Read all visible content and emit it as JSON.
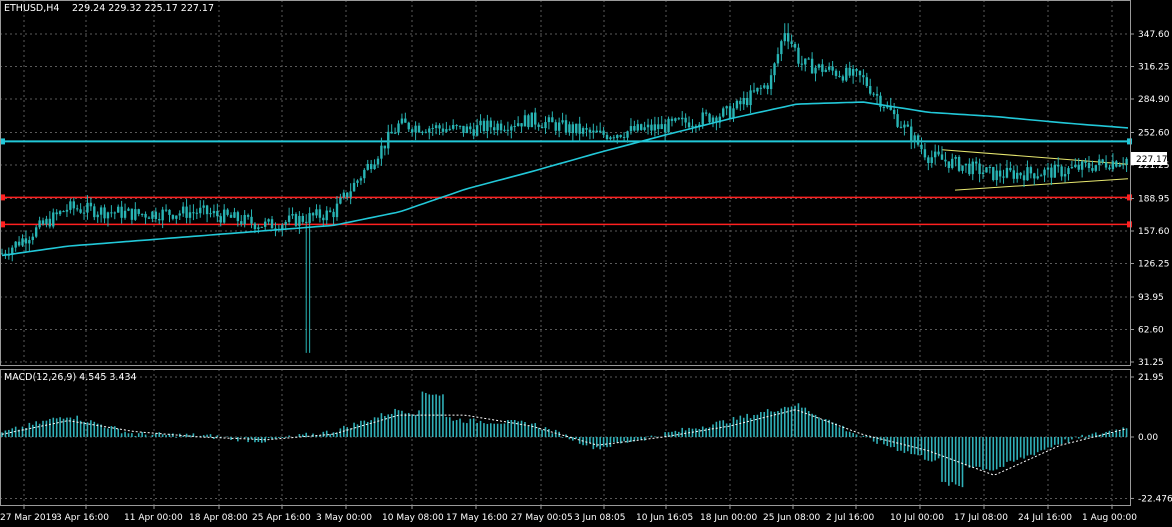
{
  "header": {
    "symbol": "ETHUSD,H4",
    "ohlc": "229.24 229.32 225.17 227.17"
  },
  "price_panel": {
    "price_ticks": [
      "347.60",
      "316.25",
      "284.90",
      "252.60",
      "221.25",
      "188.95",
      "157.60",
      "126.25",
      "93.95",
      "62.60",
      "31.25"
    ],
    "current_price_label": "227.17",
    "current_price": 227.17,
    "hlines": [
      {
        "name": "cyan-level",
        "price": 244,
        "color": "#22c8d8"
      },
      {
        "name": "red-level-upper",
        "price": 190,
        "color": "#ff2020"
      },
      {
        "name": "red-level-lower",
        "price": 164,
        "color": "#ff2020"
      }
    ]
  },
  "macd_panel": {
    "title": "MACD(12,26,9) 4.545 3.434",
    "ticks": [
      "21.95",
      "0.00",
      "-22.476"
    ]
  },
  "time_axis": {
    "labels": [
      "27 Mar 2019",
      "3 Apr 16:00",
      "11 Apr 00:00",
      "18 Apr 08:00",
      "25 Apr 16:00",
      "3 May 00:00",
      "10 May 08:00",
      "17 May 16:00",
      "27 May 00:05",
      "3 Jun 08:05",
      "10 Jun 16:05",
      "18 Jun 00:00",
      "25 Jun 08:00",
      "2 Jul 16:00",
      "10 Jul 00:00",
      "17 Jul 08:00",
      "24 Jul 16:00",
      "1 Aug 00:00"
    ]
  },
  "chart_data": [
    {
      "type": "line",
      "title": "ETHUSD,H4",
      "ylim": [
        31.25,
        364
      ],
      "x": [
        "27 Mar 2019",
        "3 Apr 16:00",
        "11 Apr 00:00",
        "18 Apr 08:00",
        "25 Apr 16:00",
        "3 May 00:00",
        "10 May 08:00",
        "17 May 16:00",
        "27 May 00:05",
        "3 Jun 08:05",
        "10 Jun 16:05",
        "18 Jun 00:00",
        "25 Jun 08:00",
        "2 Jul 16:00",
        "10 Jul 00:00",
        "17 Jul 08:00",
        "24 Jul 16:00",
        "1 Aug 00:00"
      ],
      "series": [
        {
          "values": [
            136,
            180,
            174,
            176,
            163,
            175,
            260,
            255,
            265,
            250,
            258,
            272,
            320,
            305,
            230,
            212,
            215,
            227
          ],
          "color": "#22b8b8"
        },
        {
          "values": [
            134,
            143,
            148,
            153,
            158,
            163,
            176,
            198,
            215,
            233,
            250,
            266,
            280,
            282,
            272,
            268,
            262,
            257
          ],
          "color": "#22c8d8"
        }
      ]
    },
    {
      "type": "bar",
      "title": "MACD(12,26,9) 4.545 3.434",
      "ylim": [
        -26,
        25
      ],
      "x": [
        "27 Mar 2019",
        "3 Apr 16:00",
        "11 Apr 00:00",
        "18 Apr 08:00",
        "25 Apr 16:00",
        "3 May 00:00",
        "10 May 08:00",
        "17 May 16:00",
        "27 May 00:05",
        "3 Jun 08:05",
        "10 Jun 16:05",
        "18 Jun 00:00",
        "25 Jun 08:00",
        "2 Jul 16:00",
        "10 Jul 00:00",
        "17 Jul 08:00",
        "24 Jul 16:00",
        "1 Aug 00:00"
      ],
      "series": [
        {
          "values": [
            1.5,
            8,
            1,
            0.5,
            -1.5,
            2,
            10,
            6,
            5,
            -4,
            1,
            6,
            12,
            0,
            -8,
            -12,
            -2,
            3.5
          ],
          "color": "#30b0b8"
        },
        {
          "values": [
            1,
            6,
            2,
            0,
            -1,
            1,
            8,
            8,
            4,
            -3,
            0,
            4,
            10,
            1,
            -5,
            -14,
            -3,
            3
          ],
          "color": "#ffffff"
        }
      ]
    }
  ]
}
